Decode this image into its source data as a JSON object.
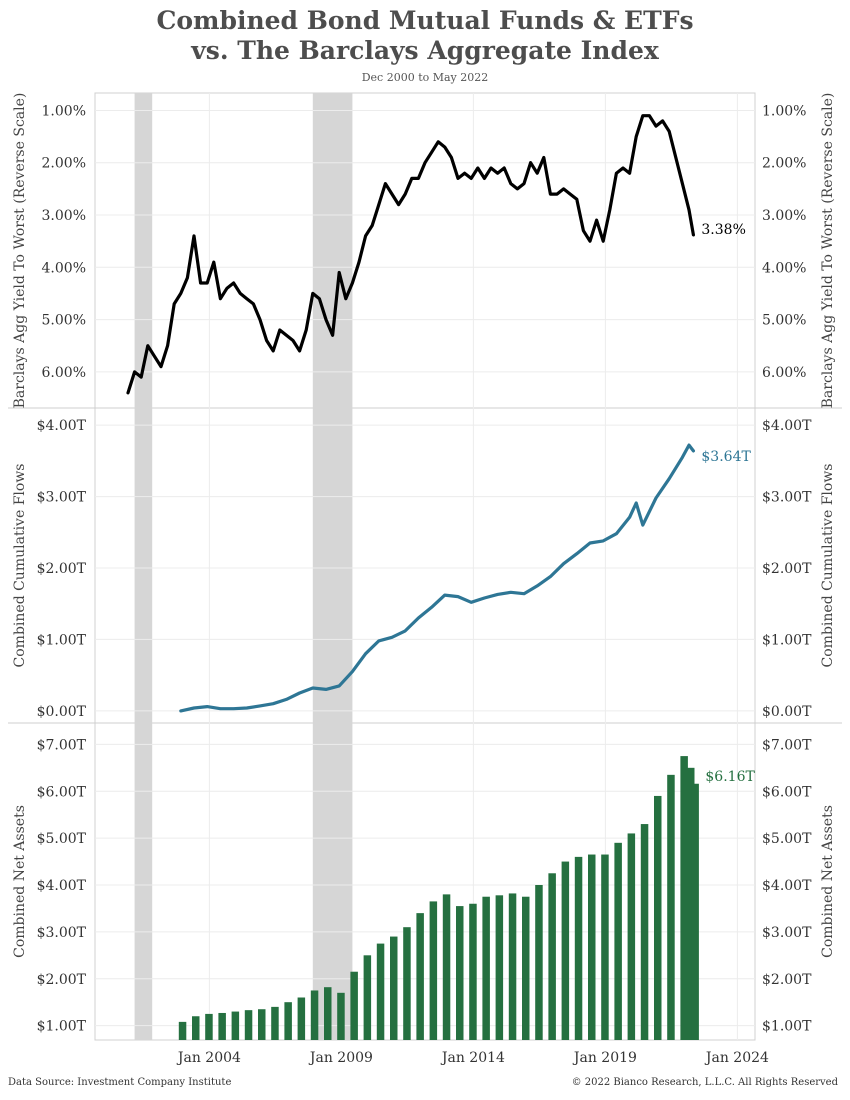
{
  "header": {
    "title_line1": "Combined Bond Mutual Funds & ETFs",
    "title_line2": "vs. The Barclays Aggregate Index",
    "subtitle": "Dec 2000 to May 2022"
  },
  "footer": {
    "source": "Data Source: Investment Company Institute",
    "copyright": "© 2022 Bianco Research, L.L.C. All Rights Reserved"
  },
  "colors": {
    "yield_line": "#000000",
    "flows_line": "#2e7695",
    "assets_bars": "#257040",
    "recession_shade": "#d6d6d6",
    "grid": "#ececec"
  },
  "chart_data": [
    {
      "type": "line",
      "ylabel": "Barclays Agg Yield To Worst (Reverse Scale)",
      "y_reversed": true,
      "ylim": [
        6.5,
        0.8
      ],
      "ticks": [
        "1.00%",
        "2.00%",
        "3.00%",
        "4.00%",
        "5.00%",
        "6.00%"
      ],
      "tick_values": [
        1,
        2,
        3,
        4,
        5,
        6
      ],
      "end_label": "3.38%",
      "x": [
        "2000-12",
        "2001-03",
        "2001-06",
        "2001-09",
        "2001-12",
        "2002-03",
        "2002-06",
        "2002-09",
        "2002-12",
        "2003-03",
        "2003-06",
        "2003-09",
        "2003-12",
        "2004-03",
        "2004-06",
        "2004-09",
        "2004-12",
        "2005-03",
        "2005-06",
        "2005-09",
        "2005-12",
        "2006-03",
        "2006-06",
        "2006-09",
        "2006-12",
        "2007-03",
        "2007-06",
        "2007-09",
        "2007-12",
        "2008-03",
        "2008-06",
        "2008-09",
        "2008-12",
        "2009-03",
        "2009-06",
        "2009-09",
        "2009-12",
        "2010-03",
        "2010-06",
        "2010-09",
        "2010-12",
        "2011-03",
        "2011-06",
        "2011-09",
        "2011-12",
        "2012-03",
        "2012-06",
        "2012-09",
        "2012-12",
        "2013-03",
        "2013-06",
        "2013-09",
        "2013-12",
        "2014-03",
        "2014-06",
        "2014-09",
        "2014-12",
        "2015-03",
        "2015-06",
        "2015-09",
        "2015-12",
        "2016-03",
        "2016-06",
        "2016-09",
        "2016-12",
        "2017-03",
        "2017-06",
        "2017-09",
        "2017-12",
        "2018-03",
        "2018-06",
        "2018-09",
        "2018-12",
        "2019-03",
        "2019-06",
        "2019-09",
        "2019-12",
        "2020-03",
        "2020-06",
        "2020-09",
        "2020-12",
        "2021-03",
        "2021-06",
        "2021-09",
        "2021-12",
        "2022-03",
        "2022-05"
      ],
      "values": [
        6.4,
        6.0,
        6.1,
        5.5,
        5.7,
        5.9,
        5.5,
        4.7,
        4.5,
        4.2,
        3.4,
        4.3,
        4.3,
        3.9,
        4.6,
        4.4,
        4.3,
        4.5,
        4.6,
        4.7,
        5.0,
        5.4,
        5.6,
        5.2,
        5.3,
        5.4,
        5.6,
        5.2,
        4.5,
        4.6,
        5.0,
        5.3,
        4.1,
        4.6,
        4.3,
        3.9,
        3.4,
        3.2,
        2.8,
        2.4,
        2.6,
        2.8,
        2.6,
        2.3,
        2.3,
        2.0,
        1.8,
        1.6,
        1.7,
        1.9,
        2.3,
        2.2,
        2.3,
        2.1,
        2.3,
        2.1,
        2.2,
        2.1,
        2.4,
        2.5,
        2.4,
        2.0,
        2.2,
        1.9,
        2.6,
        2.6,
        2.5,
        2.6,
        2.7,
        3.3,
        3.5,
        3.1,
        3.5,
        2.9,
        2.2,
        2.1,
        2.2,
        1.5,
        1.1,
        1.1,
        1.3,
        1.2,
        1.4,
        1.9,
        2.4,
        2.9,
        3.38
      ]
    },
    {
      "type": "line",
      "ylabel": "Combined Cumulative Flows",
      "ylim": [
        -0.1,
        4.1
      ],
      "ticks": [
        "$0.00T",
        "$1.00T",
        "$2.00T",
        "$3.00T",
        "$4.00T"
      ],
      "tick_values": [
        0,
        1,
        2,
        3,
        4
      ],
      "end_label": "$3.64T",
      "x": [
        "2002-12",
        "2003-06",
        "2003-12",
        "2004-06",
        "2004-12",
        "2005-06",
        "2005-12",
        "2006-06",
        "2006-12",
        "2007-06",
        "2007-12",
        "2008-06",
        "2008-12",
        "2009-06",
        "2009-12",
        "2010-06",
        "2010-12",
        "2011-06",
        "2011-12",
        "2012-06",
        "2012-12",
        "2013-06",
        "2013-12",
        "2014-06",
        "2014-12",
        "2015-06",
        "2015-12",
        "2016-06",
        "2016-12",
        "2017-06",
        "2017-12",
        "2018-06",
        "2018-12",
        "2019-06",
        "2019-12",
        "2020-03",
        "2020-06",
        "2020-12",
        "2021-06",
        "2021-12",
        "2022-03",
        "2022-05"
      ],
      "values": [
        0.0,
        0.04,
        0.06,
        0.03,
        0.03,
        0.04,
        0.07,
        0.1,
        0.16,
        0.25,
        0.32,
        0.3,
        0.35,
        0.55,
        0.8,
        0.98,
        1.03,
        1.12,
        1.3,
        1.45,
        1.62,
        1.6,
        1.52,
        1.58,
        1.63,
        1.66,
        1.64,
        1.75,
        1.88,
        2.06,
        2.2,
        2.35,
        2.38,
        2.48,
        2.71,
        2.91,
        2.6,
        2.98,
        3.25,
        3.55,
        3.72,
        3.64
      ]
    },
    {
      "type": "bar",
      "ylabel": "Combined Net Assets",
      "ylim": [
        0.8,
        7.2
      ],
      "ticks": [
        "$1.00T",
        "$2.00T",
        "$3.00T",
        "$4.00T",
        "$5.00T",
        "$6.00T",
        "$7.00T"
      ],
      "tick_values": [
        1,
        2,
        3,
        4,
        5,
        6,
        7
      ],
      "end_label": "$6.16T",
      "x": [
        "2002-12",
        "2003-06",
        "2003-12",
        "2004-06",
        "2004-12",
        "2005-06",
        "2005-12",
        "2006-06",
        "2006-12",
        "2007-06",
        "2007-12",
        "2008-06",
        "2008-12",
        "2009-06",
        "2009-12",
        "2010-06",
        "2010-12",
        "2011-06",
        "2011-12",
        "2012-06",
        "2012-12",
        "2013-06",
        "2013-12",
        "2014-06",
        "2014-12",
        "2015-06",
        "2015-12",
        "2016-06",
        "2016-12",
        "2017-06",
        "2017-12",
        "2018-06",
        "2018-12",
        "2019-06",
        "2019-12",
        "2020-06",
        "2020-12",
        "2021-06",
        "2021-12",
        "2022-03",
        "2022-05"
      ],
      "values": [
        1.08,
        1.2,
        1.25,
        1.27,
        1.3,
        1.33,
        1.35,
        1.4,
        1.5,
        1.6,
        1.75,
        1.82,
        1.7,
        2.15,
        2.5,
        2.75,
        2.9,
        3.1,
        3.4,
        3.65,
        3.8,
        3.55,
        3.6,
        3.75,
        3.78,
        3.82,
        3.75,
        4.0,
        4.25,
        4.5,
        4.6,
        4.65,
        4.65,
        4.9,
        5.1,
        5.3,
        5.9,
        6.35,
        6.75,
        6.5,
        6.16
      ]
    }
  ],
  "x_axis": {
    "ticks": [
      "Jan 2004",
      "Jan 2009",
      "Jan 2014",
      "Jan 2019",
      "Jan 2024"
    ],
    "tick_dates": [
      "2004-01",
      "2009-01",
      "2014-01",
      "2019-01",
      "2024-01"
    ],
    "range": [
      "1999-09",
      "2024-09"
    ]
  },
  "recessions": [
    {
      "start": "2001-03",
      "end": "2001-11"
    },
    {
      "start": "2007-12",
      "end": "2009-06"
    }
  ]
}
